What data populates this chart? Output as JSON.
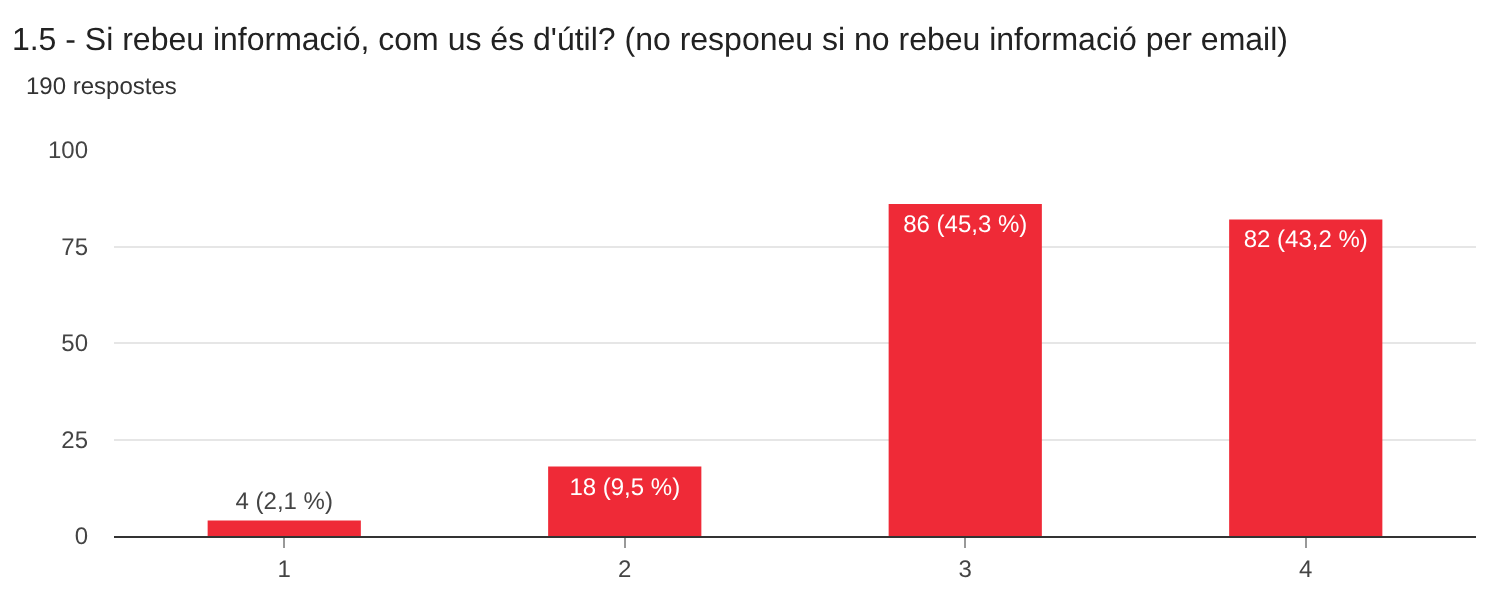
{
  "chart_data": {
    "type": "bar",
    "title": "1.5 - Si rebeu informació, com us és d'útil? (no responeu si no rebeu informació per email)",
    "subtitle": "190 respostes",
    "categories": [
      "1",
      "2",
      "3",
      "4"
    ],
    "values": [
      4,
      18,
      86,
      82
    ],
    "value_labels": [
      "4 (2,1 %)",
      "18 (9,5 %)",
      "86 (45,3 %)",
      "82 (43,2 %)"
    ],
    "color": "#ef2a37",
    "ylim": [
      0,
      100
    ],
    "yticks": [
      0,
      25,
      50,
      75,
      100
    ],
    "grid": "y",
    "legend": false
  }
}
